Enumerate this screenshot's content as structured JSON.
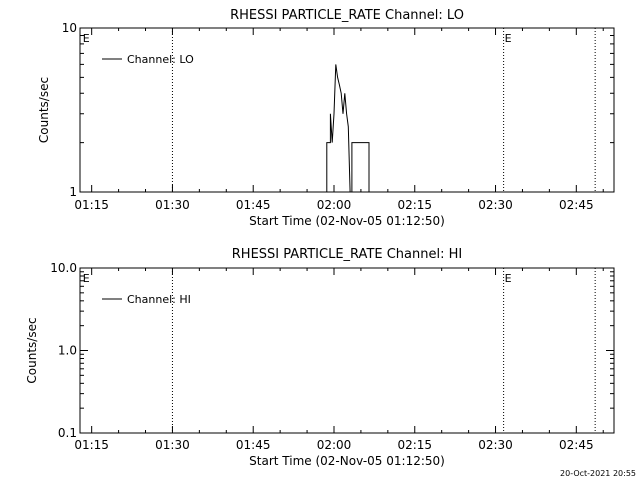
{
  "chart_data": [
    {
      "type": "line",
      "title": "RHESSI PARTICLE_RATE Channel: LO",
      "xlabel": "Start Time (02-Nov-05 01:12:50)",
      "ylabel": "Counts/sec",
      "yscale": "log",
      "ylim": [
        1,
        10
      ],
      "xlim": [
        "01:12:50",
        "02:52:00"
      ],
      "x_ticks": [
        "01:15",
        "01:30",
        "01:45",
        "02:00",
        "02:15",
        "02:30",
        "02:45"
      ],
      "y_ticks": [
        "1",
        "10"
      ],
      "legend": {
        "placement": "top-left",
        "entries": [
          "Channel: LO"
        ]
      },
      "markers": [
        {
          "label": "E",
          "time": "01:13:10"
        },
        {
          "label": "E",
          "time": "02:31:30"
        }
      ],
      "vlines": [
        "01:30:00",
        "02:31:30",
        "02:48:30"
      ],
      "series": [
        {
          "name": "Channel: LO",
          "points": [
            {
              "t": "01:58:40",
              "y": 1
            },
            {
              "t": "01:58:40",
              "y": 2
            },
            {
              "t": "01:59:20",
              "y": 2
            },
            {
              "t": "01:59:20",
              "y": 3
            },
            {
              "t": "01:59:40",
              "y": 2
            },
            {
              "t": "02:00:00",
              "y": 3
            },
            {
              "t": "02:00:20",
              "y": 6
            },
            {
              "t": "02:00:40",
              "y": 5
            },
            {
              "t": "02:01:00",
              "y": 4.5
            },
            {
              "t": "02:01:20",
              "y": 4
            },
            {
              "t": "02:01:40",
              "y": 3
            },
            {
              "t": "02:02:00",
              "y": 4
            },
            {
              "t": "02:02:20",
              "y": 3
            },
            {
              "t": "02:02:40",
              "y": 2.5
            },
            {
              "t": "02:03:00",
              "y": 1
            },
            {
              "t": "02:03:20",
              "y": 1
            },
            {
              "t": "02:03:20",
              "y": 2
            },
            {
              "t": "02:06:30",
              "y": 2
            },
            {
              "t": "02:06:30",
              "y": 1
            }
          ]
        }
      ]
    },
    {
      "type": "line",
      "title": "RHESSI PARTICLE_RATE Channel: HI",
      "xlabel": "Start Time (02-Nov-05 01:12:50)",
      "ylabel": "Counts/sec",
      "yscale": "log",
      "ylim": [
        0.1,
        10
      ],
      "xlim": [
        "01:12:50",
        "02:52:00"
      ],
      "x_ticks": [
        "01:15",
        "01:30",
        "01:45",
        "02:00",
        "02:15",
        "02:30",
        "02:45"
      ],
      "y_ticks": [
        "0.1",
        "1.0",
        "10.0"
      ],
      "legend": {
        "placement": "top-left",
        "entries": [
          "Channel: HI"
        ]
      },
      "markers": [
        {
          "label": "E",
          "time": "01:13:10"
        },
        {
          "label": "E",
          "time": "02:31:30"
        }
      ],
      "vlines": [
        "01:30:00",
        "02:31:30",
        "02:48:30"
      ],
      "series": [
        {
          "name": "Channel: HI",
          "points": []
        }
      ]
    }
  ],
  "footer": {
    "timestamp": "20-Oct-2021 20:55"
  }
}
